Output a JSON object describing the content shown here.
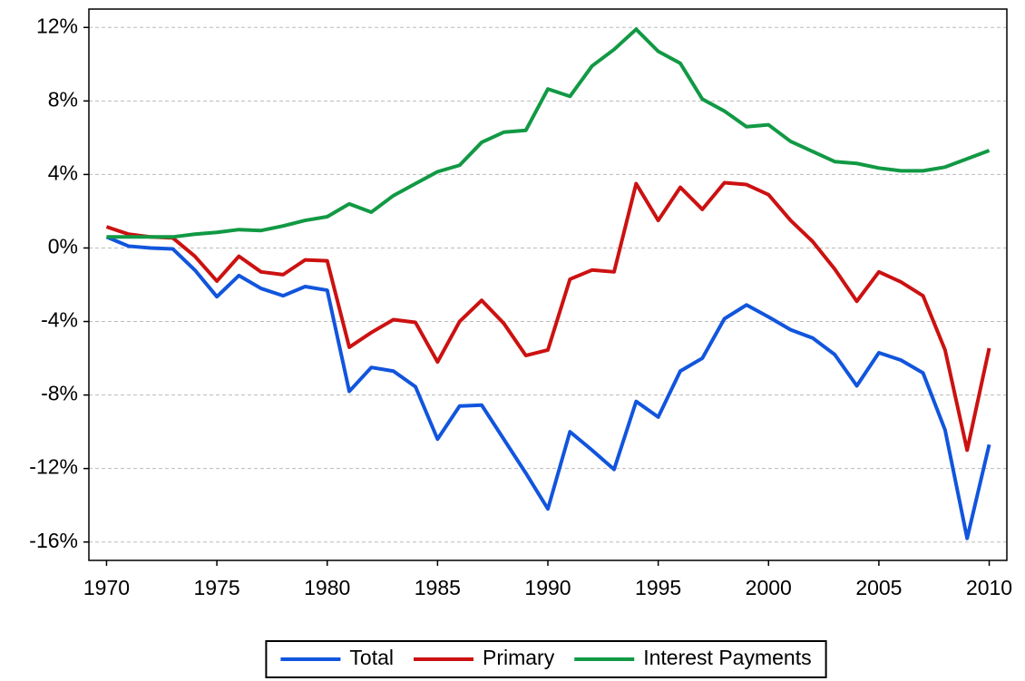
{
  "chart_data": {
    "type": "line",
    "x": [
      1970,
      1971,
      1972,
      1973,
      1974,
      1975,
      1976,
      1977,
      1978,
      1979,
      1980,
      1981,
      1982,
      1983,
      1984,
      1985,
      1986,
      1987,
      1988,
      1989,
      1990,
      1991,
      1992,
      1993,
      1994,
      1995,
      1996,
      1997,
      1998,
      1999,
      2000,
      2001,
      2002,
      2003,
      2004,
      2005,
      2006,
      2007,
      2008,
      2009,
      2010
    ],
    "series": [
      {
        "name": "Total",
        "color": "#1155dd",
        "values": [
          0.6,
          0.1,
          0.0,
          -0.05,
          -1.2,
          -2.65,
          -1.5,
          -2.2,
          -2.6,
          -2.1,
          -2.3,
          -7.8,
          -6.5,
          -6.7,
          -7.55,
          -10.4,
          -8.6,
          -8.55,
          -10.4,
          -12.25,
          -14.2,
          -10.0,
          -11.0,
          -12.05,
          -8.35,
          -9.2,
          -6.7,
          -6.0,
          -3.85,
          -3.1,
          -3.75,
          -4.45,
          -4.9,
          -5.8,
          -7.5,
          -5.7,
          -6.1,
          -6.8,
          -9.9,
          -15.8,
          -10.7
        ]
      },
      {
        "name": "Primary",
        "color": "#cc1111",
        "values": [
          1.15,
          0.75,
          0.6,
          0.55,
          -0.45,
          -1.8,
          -0.45,
          -1.3,
          -1.45,
          -0.65,
          -0.7,
          -5.4,
          -4.6,
          -3.9,
          -4.05,
          -6.2,
          -4.0,
          -2.85,
          -4.1,
          -5.85,
          -5.55,
          -1.7,
          -1.2,
          -1.3,
          3.5,
          1.5,
          3.3,
          2.1,
          3.55,
          3.45,
          2.9,
          1.5,
          0.35,
          -1.15,
          -2.9,
          -1.3,
          -1.85,
          -2.6,
          -5.55,
          -11.0,
          -5.45
        ]
      },
      {
        "name": "Interest Payments",
        "color": "#119944",
        "values": [
          0.6,
          0.6,
          0.6,
          0.6,
          0.75,
          0.85,
          1.0,
          0.95,
          1.2,
          1.5,
          1.7,
          2.4,
          1.95,
          2.85,
          3.5,
          4.15,
          4.5,
          5.75,
          6.3,
          6.4,
          8.65,
          8.25,
          9.9,
          10.8,
          11.9,
          10.7,
          10.05,
          8.1,
          7.45,
          6.6,
          6.7,
          5.8,
          5.25,
          4.7,
          4.6,
          4.35,
          4.2,
          4.2,
          4.4,
          4.85,
          5.3
        ]
      }
    ],
    "xlim": [
      1969.2,
      2010.8
    ],
    "xticks": [
      1970,
      1975,
      1980,
      1985,
      1990,
      1995,
      2000,
      2005,
      2010
    ],
    "ylim": [
      -17,
      13
    ],
    "yticks": [
      {
        "value": -16,
        "label": "-16%"
      },
      {
        "value": -12,
        "label": "-12%"
      },
      {
        "value": -8,
        "label": "-8%"
      },
      {
        "value": -4,
        "label": "-4%"
      },
      {
        "value": 0,
        "label": "0%"
      },
      {
        "value": 4,
        "label": "4%"
      },
      {
        "value": 8,
        "label": "8%"
      },
      {
        "value": 12,
        "label": "12%"
      }
    ],
    "grid": true,
    "legend": "bottom"
  }
}
